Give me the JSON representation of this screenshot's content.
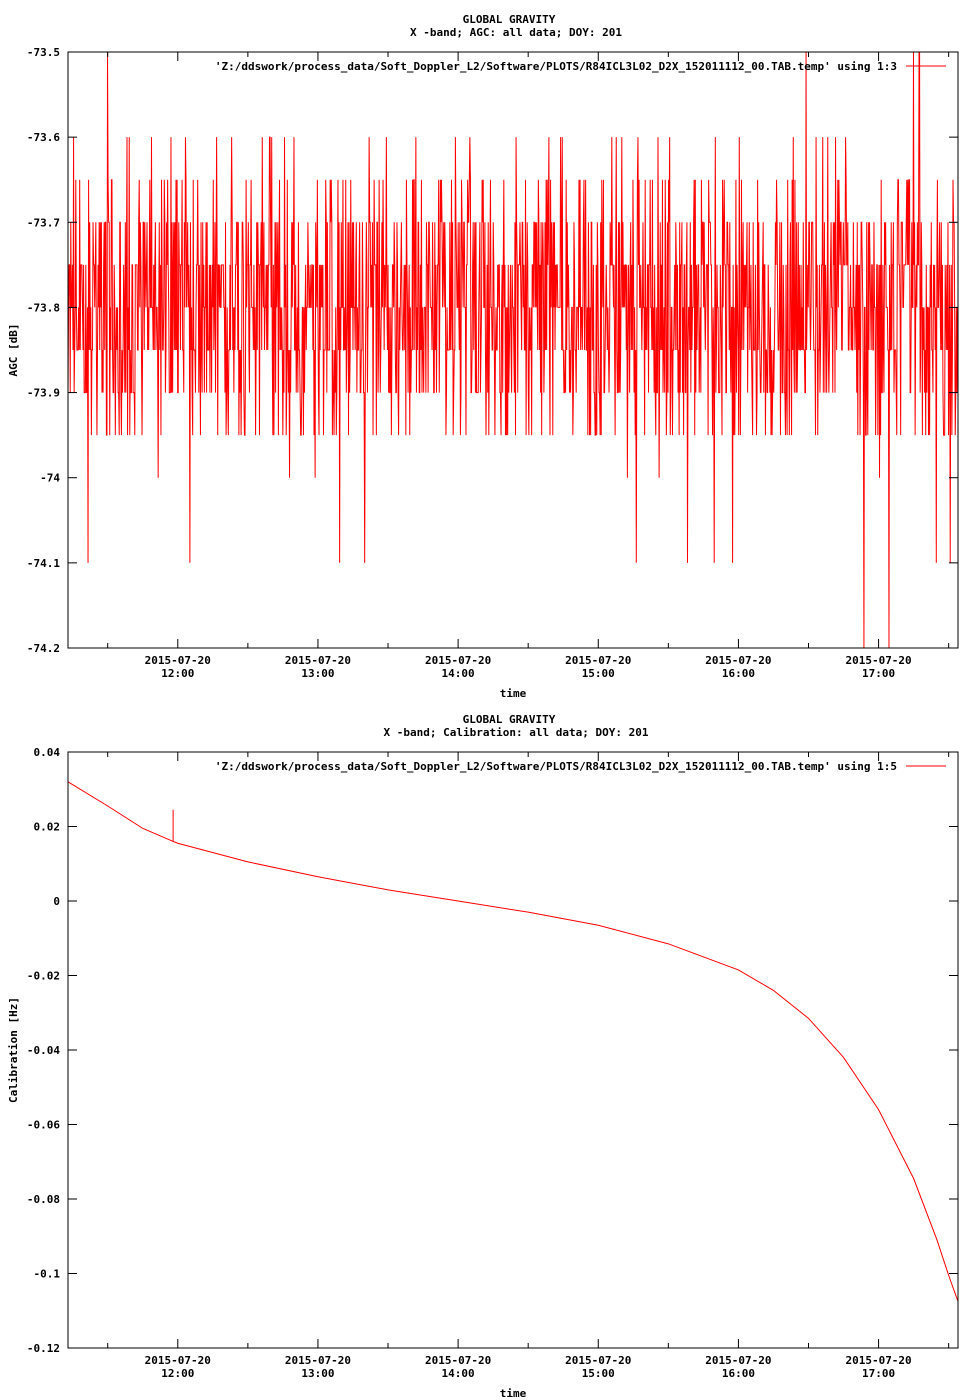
{
  "plots": [
    {
      "title_line1": "GLOBAL GRAVITY",
      "title_line2": "X -band; AGC: all data; DOY: 201",
      "legend": "'Z:/ddswork/process_data/Soft_Doppler_L2/Software/PLOTS/R84ICL3L02_D2X_152011112_00.TAB.temp' using 1:3",
      "xlabel": "time",
      "ylabel": "AGC [dB]",
      "ytick_labels": [
        "-73.5",
        "-73.6",
        "-73.7",
        "-73.8",
        "-73.9",
        "-74",
        "-74.1",
        "-74.2"
      ],
      "xtick_date": [
        "2015-07-20",
        "2015-07-20",
        "2015-07-20",
        "2015-07-20",
        "2015-07-20",
        "2015-07-20"
      ],
      "xtick_time": [
        "12:00",
        "13:00",
        "14:00",
        "15:00",
        "16:00",
        "17:00"
      ]
    },
    {
      "title_line1": "GLOBAL GRAVITY",
      "title_line2": "X -band; Calibration: all data; DOY: 201",
      "legend": "'Z:/ddswork/process_data/Soft_Doppler_L2/Software/PLOTS/R84ICL3L02_D2X_152011112_00.TAB.temp' using 1:5",
      "xlabel": "time",
      "ylabel": "Calibration [Hz]",
      "ytick_labels": [
        "0.04",
        "0.02",
        "0",
        "-0.02",
        "-0.04",
        "-0.06",
        "-0.08",
        "-0.1",
        "-0.12"
      ],
      "xtick_date": [
        "2015-07-20",
        "2015-07-20",
        "2015-07-20",
        "2015-07-20",
        "2015-07-20",
        "2015-07-20"
      ],
      "xtick_time": [
        "12:00",
        "13:00",
        "14:00",
        "15:00",
        "16:00",
        "17:00"
      ]
    }
  ],
  "chart_data": [
    {
      "type": "line",
      "title": "GLOBAL GRAVITY — X -band; AGC: all data; DOY: 201",
      "xlabel": "time",
      "ylabel": "AGC [dB]",
      "xlim": [
        "2015-07-20 11:13",
        "2015-07-20 17:34"
      ],
      "ylim": [
        -74.2,
        -73.5
      ],
      "yticks": [
        -73.5,
        -73.6,
        -73.7,
        -73.8,
        -73.9,
        -74,
        -74.1,
        -74.2
      ],
      "xticks": [
        "2015-07-20 12:00",
        "2015-07-20 13:00",
        "2015-07-20 14:00",
        "2015-07-20 15:00",
        "2015-07-20 16:00",
        "2015-07-20 17:00"
      ],
      "color": "#ff0000",
      "grid": false,
      "legend_position": "top-right",
      "series": [
        {
          "name": "'Z:/ddswork/process_data/Soft_Doppler_L2/Software/PLOTS/R84ICL3L02_D2X_152011112_00.TAB.temp' using 1:3",
          "noisy": true,
          "mean": -73.8,
          "typical_range": [
            -74.0,
            -73.6
          ],
          "extremes": [
            -74.2,
            -73.5
          ],
          "quantization_db": 0.05
        }
      ]
    },
    {
      "type": "line",
      "title": "GLOBAL GRAVITY — X -band; Calibration: all data; DOY: 201",
      "xlabel": "time",
      "ylabel": "Calibration [Hz]",
      "xlim": [
        "2015-07-20 11:13",
        "2015-07-20 17:34"
      ],
      "ylim": [
        -0.12,
        0.04
      ],
      "yticks": [
        0.04,
        0.02,
        0,
        -0.02,
        -0.04,
        -0.06,
        -0.08,
        -0.1,
        -0.12
      ],
      "xticks": [
        "2015-07-20 12:00",
        "2015-07-20 13:00",
        "2015-07-20 14:00",
        "2015-07-20 15:00",
        "2015-07-20 16:00",
        "2015-07-20 17:00"
      ],
      "color": "#ff0000",
      "grid": false,
      "legend_position": "top-right",
      "series": [
        {
          "name": "'Z:/ddswork/process_data/Soft_Doppler_L2/Software/PLOTS/R84ICL3L02_D2X_152011112_00.TAB.temp' using 1:5",
          "x": [
            "11:13",
            "11:30",
            "11:45",
            "11:58",
            "12:00",
            "12:30",
            "13:00",
            "13:30",
            "14:00",
            "14:30",
            "15:00",
            "15:30",
            "16:00",
            "16:15",
            "16:30",
            "16:45",
            "17:00",
            "17:15",
            "17:25",
            "17:30",
            "17:34"
          ],
          "y": [
            0.032,
            0.0255,
            0.0195,
            0.016,
            0.0155,
            0.0105,
            0.0065,
            0.003,
            0.0,
            -0.003,
            -0.0065,
            -0.0115,
            -0.0185,
            -0.024,
            -0.0315,
            -0.042,
            -0.056,
            -0.0745,
            -0.091,
            -0.1005,
            -0.1075
          ],
          "spike": {
            "x": "11:58",
            "y": 0.0245
          }
        }
      ]
    }
  ]
}
